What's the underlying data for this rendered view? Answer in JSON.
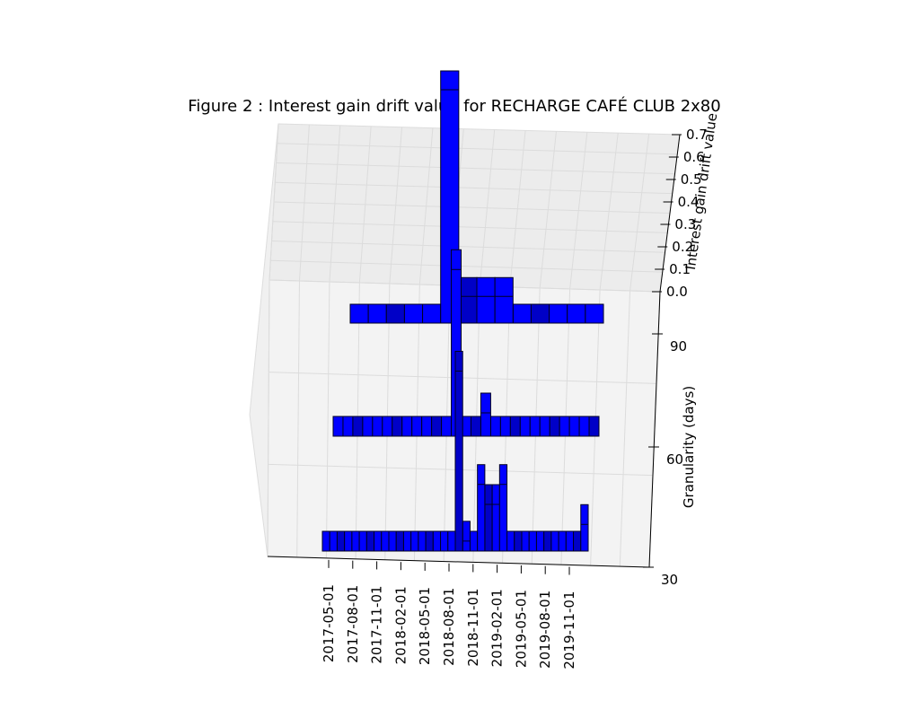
{
  "chart_data": {
    "type": "bar3d",
    "title": "Figure 2 : Interest gain drift value for RECHARGE CAFÉ CLUB 2x80",
    "xlabel": "",
    "ylabel": "Granularity (days)",
    "zlabel": "Interest gain drift value",
    "x_tick_labels": [
      "2017-05-01",
      "2017-08-01",
      "2017-11-01",
      "2018-02-01",
      "2018-05-01",
      "2018-08-01",
      "2018-11-01",
      "2019-02-01",
      "2019-05-01",
      "2019-08-01",
      "2019-11-01"
    ],
    "y_tick_labels": [
      "30",
      "60",
      "90"
    ],
    "z_tick_labels": [
      "0.0",
      "0.1",
      "0.2",
      "0.3",
      "0.4",
      "0.5",
      "0.6",
      "0.7"
    ],
    "zlim": [
      0,
      0.7
    ],
    "bar_color": "#0000ff",
    "series": [
      {
        "name": "30",
        "values": [
          0.0,
          0.0,
          0.0,
          0.0,
          0.0,
          0.0,
          0.0,
          0.0,
          0.0,
          0.0,
          0.0,
          0.0,
          0.0,
          0.0,
          0.0,
          0.0,
          0.0,
          0.0,
          0.54,
          0.03,
          0.0,
          0.2,
          0.14,
          0.14,
          0.2,
          0.0,
          0.0,
          0.0,
          0.0,
          0.0,
          0.0,
          0.0,
          0.0,
          0.0,
          0.0,
          0.08
        ]
      },
      {
        "name": "60",
        "values": [
          0.0,
          0.0,
          0.0,
          0.0,
          0.0,
          0.0,
          0.0,
          0.0,
          0.0,
          0.0,
          0.0,
          0.0,
          0.5,
          0.0,
          0.0,
          0.07,
          0.0,
          0.0,
          0.0,
          0.0,
          0.0,
          0.0,
          0.0,
          0.0,
          0.0,
          0.0,
          0.0
        ]
      },
      {
        "name": "90",
        "values": [
          0.0,
          0.0,
          0.0,
          0.0,
          0.0,
          0.7,
          0.08,
          0.08,
          0.08,
          0.0,
          0.0,
          0.0,
          0.0,
          0.0
        ]
      }
    ]
  }
}
